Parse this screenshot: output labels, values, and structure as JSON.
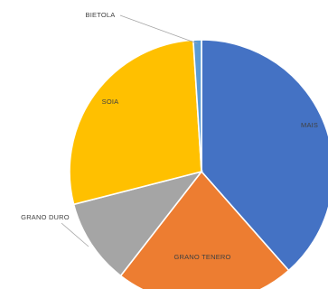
{
  "chart_data": {
    "type": "pie",
    "title": "",
    "slices": [
      {
        "label": "MAIS",
        "value": 38.5,
        "color": "#4472C4"
      },
      {
        "label": "GRANO TENERO",
        "value": 22.0,
        "color": "#ED7D31"
      },
      {
        "label": "GRANO DURO",
        "value": 10.5,
        "color": "#A5A5A5"
      },
      {
        "label": "SOIA",
        "value": 28.0,
        "color": "#FFC000"
      },
      {
        "label": "BIETOLA",
        "value": 1.0,
        "color": "#5B9BD5"
      }
    ]
  }
}
